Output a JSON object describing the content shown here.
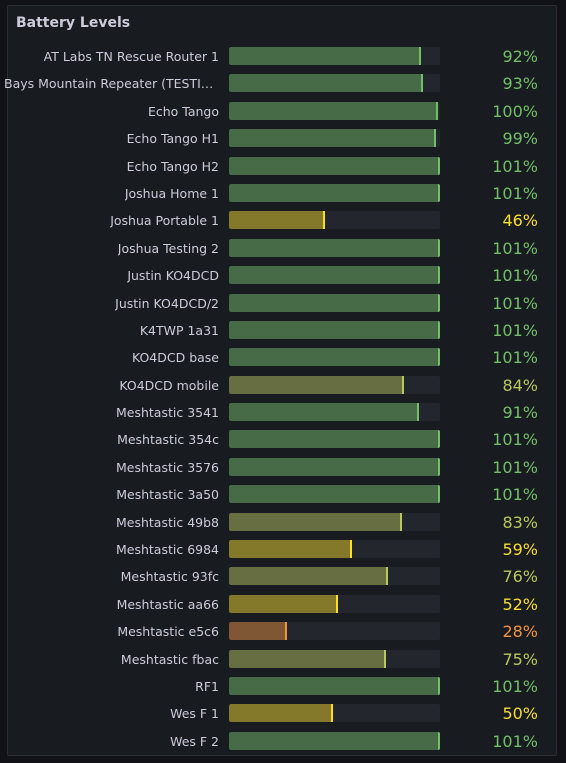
{
  "panel": {
    "title": "Battery Levels"
  },
  "colors": {
    "green": "#73bf69",
    "yellowgreen": "#bac75a",
    "yellow": "#fade2a",
    "orange": "#f2943e"
  },
  "items": [
    {
      "label": "AT Labs TN Rescue Router 1",
      "value": 92,
      "display": "92%"
    },
    {
      "label": "Bays Mountain Repeater (TESTING)",
      "value": 93,
      "display": "93%"
    },
    {
      "label": "Echo Tango",
      "value": 100,
      "display": "100%"
    },
    {
      "label": "Echo Tango H1",
      "value": 99,
      "display": "99%"
    },
    {
      "label": "Echo Tango H2",
      "value": 101,
      "display": "101%"
    },
    {
      "label": "Joshua Home 1",
      "value": 101,
      "display": "101%"
    },
    {
      "label": "Joshua Portable 1",
      "value": 46,
      "display": "46%"
    },
    {
      "label": "Joshua Testing 2",
      "value": 101,
      "display": "101%"
    },
    {
      "label": "Justin KO4DCD",
      "value": 101,
      "display": "101%"
    },
    {
      "label": "Justin KO4DCD/2",
      "value": 101,
      "display": "101%"
    },
    {
      "label": "K4TWP 1a31",
      "value": 101,
      "display": "101%"
    },
    {
      "label": "KO4DCD base",
      "value": 101,
      "display": "101%"
    },
    {
      "label": "KO4DCD mobile",
      "value": 84,
      "display": "84%"
    },
    {
      "label": "Meshtastic 3541",
      "value": 91,
      "display": "91%"
    },
    {
      "label": "Meshtastic 354c",
      "value": 101,
      "display": "101%"
    },
    {
      "label": "Meshtastic 3576",
      "value": 101,
      "display": "101%"
    },
    {
      "label": "Meshtastic 3a50",
      "value": 101,
      "display": "101%"
    },
    {
      "label": "Meshtastic 49b8",
      "value": 83,
      "display": "83%"
    },
    {
      "label": "Meshtastic 6984",
      "value": 59,
      "display": "59%"
    },
    {
      "label": "Meshtastic 93fc",
      "value": 76,
      "display": "76%"
    },
    {
      "label": "Meshtastic aa66",
      "value": 52,
      "display": "52%"
    },
    {
      "label": "Meshtastic e5c6",
      "value": 28,
      "display": "28%"
    },
    {
      "label": "Meshtastic fbac",
      "value": 75,
      "display": "75%"
    },
    {
      "label": "RF1",
      "value": 101,
      "display": "101%"
    },
    {
      "label": "Wes F 1",
      "value": 50,
      "display": "50%"
    },
    {
      "label": "Wes F 2",
      "value": 101,
      "display": "101%"
    }
  ]
}
